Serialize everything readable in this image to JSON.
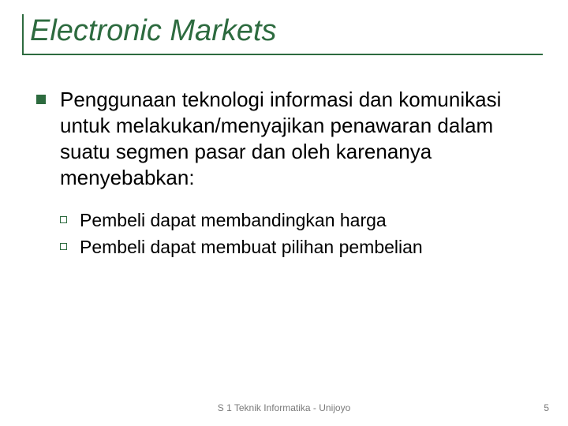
{
  "colors": {
    "accent": "#2d6b3f",
    "bullet_l1": "#2d6b3f",
    "bullet_l2_border": "#2d6b3f",
    "title": "#2d6b3f",
    "rule": "#2d6b3f",
    "footer": "#7a7a7a",
    "background": "#ffffff",
    "body_text": "#000000"
  },
  "typography": {
    "title_fontsize": 38,
    "title_style": "italic",
    "l1_fontsize": 26,
    "l2_fontsize": 23,
    "footer_fontsize": 12,
    "font_family": "Arial"
  },
  "title": "Electronic Markets",
  "bullets": {
    "l1_text": "Penggunaan teknologi informasi dan komunikasi untuk melakukan/menyajikan penawaran dalam suatu segmen pasar dan oleh karenanya menyebabkan:",
    "l2": [
      "Pembeli dapat membandingkan harga",
      "Pembeli dapat membuat pilihan pembelian"
    ]
  },
  "footer": {
    "center": "S 1 Teknik Informatika - Unijoyo",
    "page_number": "5"
  }
}
